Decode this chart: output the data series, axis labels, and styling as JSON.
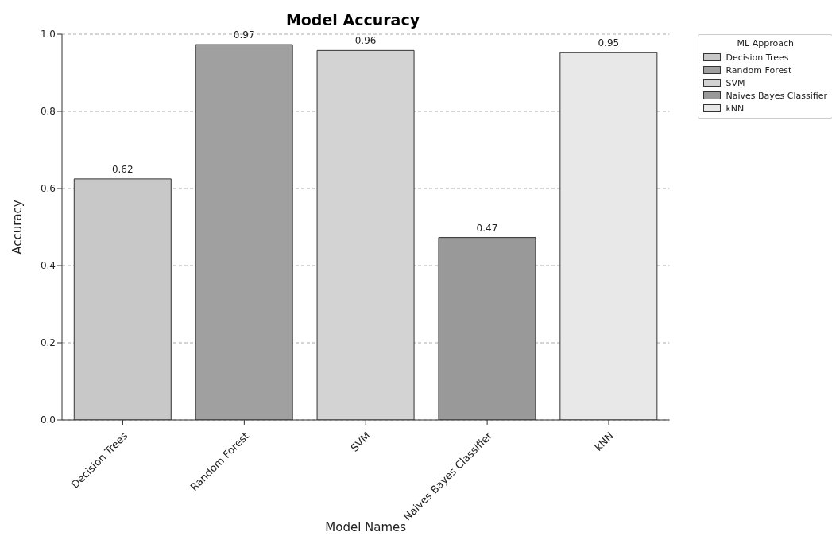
{
  "chart_data": {
    "type": "bar",
    "title": "Model Accuracy",
    "xlabel": "Model Names",
    "ylabel": "Accuracy",
    "legend_title": "ML Approach",
    "categories": [
      "Decision Trees",
      "Random Forest",
      "SVM",
      "Naives Bayes Classifier",
      "kNN"
    ],
    "series": [
      {
        "name": "Decision Trees",
        "color": "#c8c8c8",
        "values": [
          0.625,
          null,
          null,
          null,
          null
        ],
        "value_labels": [
          "0.62",
          null,
          null,
          null,
          null
        ]
      },
      {
        "name": "Random Forest",
        "color": "#a0a0a0",
        "values": [
          null,
          0.973,
          null,
          null,
          null
        ],
        "value_labels": [
          null,
          "0.97",
          null,
          null,
          null
        ]
      },
      {
        "name": "SVM",
        "color": "#d3d3d3",
        "values": [
          null,
          null,
          0.958,
          null,
          null
        ],
        "value_labels": [
          null,
          null,
          "0.96",
          null,
          null
        ]
      },
      {
        "name": "Naives Bayes Classifier",
        "color": "#999999",
        "values": [
          null,
          null,
          null,
          0.473,
          null
        ],
        "value_labels": [
          null,
          null,
          null,
          "0.47",
          null
        ]
      },
      {
        "name": "kNN",
        "color": "#e8e8e8",
        "values": [
          null,
          null,
          null,
          null,
          0.952
        ],
        "value_labels": [
          null,
          null,
          null,
          null,
          "0.95"
        ]
      }
    ],
    "ylim": [
      0,
      1
    ],
    "yticks": [
      {
        "value": 0,
        "label": "0.0"
      },
      {
        "value": 0.2,
        "label": "0.2"
      },
      {
        "value": 0.4,
        "label": "0.4"
      },
      {
        "value": 0.6,
        "label": "0.6"
      },
      {
        "value": 0.8,
        "label": "0.8"
      },
      {
        "value": 1,
        "label": "1.0"
      }
    ],
    "grid": "y",
    "legend": "top right"
  }
}
